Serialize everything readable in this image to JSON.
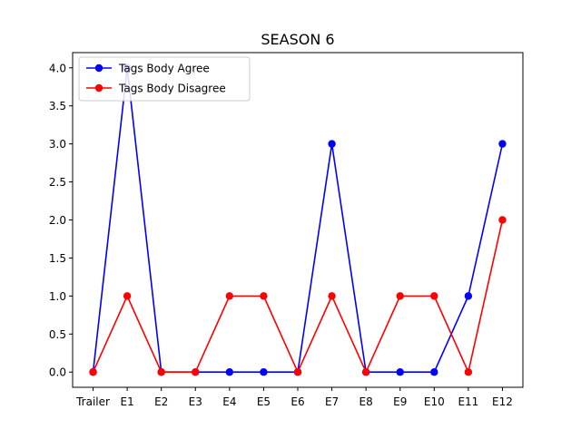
{
  "chart_data": {
    "type": "line",
    "title": "SEASON 6",
    "xlabel": "",
    "ylabel": "",
    "categories": [
      "Trailer",
      "E1",
      "E2",
      "E3",
      "E4",
      "E5",
      "E6",
      "E7",
      "E8",
      "E9",
      "E10",
      "E11",
      "E12"
    ],
    "ylim": [
      -0.2,
      4.2
    ],
    "yticks": [
      "0.0",
      "0.5",
      "1.0",
      "1.5",
      "2.0",
      "2.5",
      "3.0",
      "3.5",
      "4.0"
    ],
    "grid": false,
    "legend_position": "top-left",
    "series": [
      {
        "name": "Tags Body Agree",
        "color": "#0000ff",
        "values": [
          0,
          4,
          0,
          0,
          0,
          0,
          0,
          3,
          0,
          0,
          0,
          1,
          3
        ]
      },
      {
        "name": "Tags Body Disagree",
        "color": "#ff0000",
        "values": [
          0,
          1,
          0,
          0,
          1,
          1,
          0,
          1,
          0,
          1,
          1,
          0,
          2
        ]
      }
    ]
  }
}
